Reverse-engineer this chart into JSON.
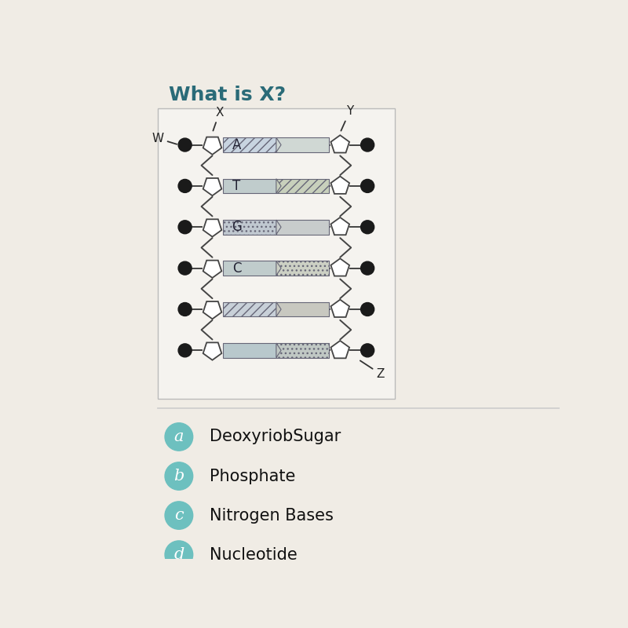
{
  "title": "What is X?",
  "title_color": "#2a6b78",
  "title_fontsize": 18,
  "bg_color": "#f0ece5",
  "diagram_bg": "#f5f3ef",
  "choices": [
    {
      "label": "a",
      "text": "DeoxyriobSugar"
    },
    {
      "label": "b",
      "text": "Phosphate"
    },
    {
      "label": "c",
      "text": "Nitrogen Bases"
    },
    {
      "label": "d",
      "text": "Nucleotide"
    }
  ],
  "choice_circle_color": "#6dc0bf",
  "choice_text_color": "#111111",
  "base_labels": [
    "A",
    "T",
    "G",
    "C",
    "",
    ""
  ],
  "left_bar_fill": [
    "#c8d4dc",
    "#b8c8cc",
    "#c0c8cc",
    "#b4c0cc",
    "#c8ccd8",
    "#c0c8cc"
  ],
  "right_bar_fill": [
    "#d8dce0",
    "#d8d4c8",
    "#c8cccc",
    "#d0d4cc",
    "#d0c8c4",
    "#c8cccc"
  ],
  "left_hatch": [
    "///",
    "",
    "...",
    "",
    "///",
    "..."
  ],
  "right_hatch": [
    "",
    "///",
    "",
    "...",
    "",
    "///"
  ],
  "strand_color": "#444444",
  "phosphate_color": "#1a1a1a",
  "sugar_color": "#ffffff",
  "label_color": "#222222"
}
